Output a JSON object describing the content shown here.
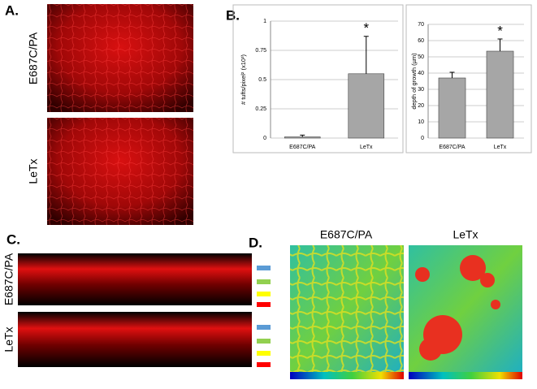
{
  "panels": {
    "a": {
      "label": "A.",
      "rows": [
        "E687C/PA",
        "LeTx"
      ]
    },
    "b": {
      "label": "B."
    },
    "c": {
      "label": "C.",
      "rows": [
        "E687C/PA",
        "LeTx"
      ]
    },
    "d": {
      "label": "D.",
      "columns": [
        "E687C/PA",
        "LeTx"
      ]
    }
  },
  "chart_data": [
    {
      "type": "bar",
      "ylabel": "# tufts/pixel² (x10³)",
      "categories": [
        "E687C/PA",
        "LeTx"
      ],
      "values": [
        0.01,
        0.55
      ],
      "errors": [
        0.015,
        0.32
      ],
      "color": "#a6a6a6",
      "ylim": [
        0,
        1
      ],
      "yticks": [
        0,
        0.25,
        0.5,
        0.75,
        1
      ],
      "grid": true,
      "annotation": "*"
    },
    {
      "type": "bar",
      "ylabel": "depth of growth (µm)",
      "categories": [
        "E687C/PA",
        "LeTx"
      ],
      "values": [
        37,
        53.5
      ],
      "errors": [
        3.5,
        7.5
      ],
      "color": "#a6a6a6",
      "ylim": [
        0,
        70
      ],
      "yticks": [
        0,
        10,
        20,
        30,
        40,
        50,
        60,
        70
      ],
      "grid": true,
      "annotation": "*"
    }
  ]
}
